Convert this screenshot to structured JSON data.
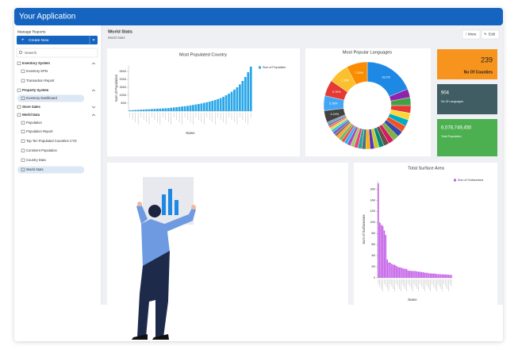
{
  "header": {
    "title": "Your Application"
  },
  "sidebar": {
    "title": "Manage Reports",
    "create_button": "Create New",
    "search_placeholder": "Search",
    "items": [
      {
        "label": "Inventory System",
        "child": false,
        "selected": false
      },
      {
        "label": "Inventory KPIs",
        "child": true,
        "selected": false
      },
      {
        "label": "Transaction Report",
        "child": true,
        "selected": false
      },
      {
        "label": "Property System",
        "child": false,
        "selected": false
      },
      {
        "label": "Inventory Dashboard",
        "child": true,
        "selected": true
      },
      {
        "label": "Store Sales",
        "child": false,
        "selected": false
      },
      {
        "label": "World Data",
        "child": false,
        "selected": false
      },
      {
        "label": "Population",
        "child": true,
        "selected": false
      },
      {
        "label": "Population Report",
        "child": true,
        "selected": false
      },
      {
        "label": "Top Ten Populated Countries CYD",
        "child": true,
        "selected": false
      },
      {
        "label": "Continent Population",
        "child": true,
        "selected": false
      },
      {
        "label": "Country Data",
        "child": true,
        "selected": false
      },
      {
        "label": "World Stats",
        "child": true,
        "selected": true
      }
    ]
  },
  "page": {
    "title": "World Stats",
    "breadcrumb": "World Stats",
    "more_button": "More",
    "edit_button": "Edit"
  },
  "kpis": [
    {
      "value": "239",
      "label": "No Of Counties",
      "color": "#f7941d"
    },
    {
      "value": "904",
      "label": "No Of Languages",
      "color": "#3f5d62"
    },
    {
      "value": "6,078,749,450",
      "label": "Total Population",
      "color": "#4caf50"
    }
  ],
  "charts": [
    {
      "type": "bar",
      "title": "Most Populated Country",
      "x_label": "Name",
      "y_label": "Sum of Population",
      "series": [
        {
          "name": "Sum of Population",
          "color": "#2aa7e8",
          "values": [
            5000000,
            6000000,
            7000000,
            8000000,
            9000000,
            10000000,
            11000000,
            12000000,
            13000000,
            14000000,
            15000000,
            16000000,
            17000000,
            18000000,
            19000000,
            21000000,
            23000000,
            25000000,
            27000000,
            29000000,
            31000000,
            33000000,
            36000000,
            39000000,
            42000000,
            45000000,
            48000000,
            52000000,
            56000000,
            60000000,
            65000000,
            70000000,
            76000000,
            82000000,
            90000000,
            100000000,
            110000000,
            122000000,
            135000000,
            150000000,
            168000000,
            190000000,
            215000000,
            245000000,
            280000000
          ]
        }
      ],
      "ylim": [
        0,
        290000000
      ],
      "yticks": [
        {
          "value": 50000000,
          "label": "50M"
        },
        {
          "value": 100000000,
          "label": "100M"
        },
        {
          "value": 150000000,
          "label": "150M"
        },
        {
          "value": 200000000,
          "label": "200M"
        },
        {
          "value": 250000000,
          "label": "250M"
        }
      ]
    },
    {
      "type": "pie",
      "title": "Most Popular Languages",
      "donut": true,
      "values": [
        18.2,
        3.1,
        2.9,
        2.7,
        2.5,
        2.4,
        2.3,
        2.2,
        2.1,
        2.0,
        1.9,
        1.8,
        1.7,
        1.6,
        1.5,
        1.5,
        1.4,
        1.4,
        1.3,
        1.3,
        1.2,
        1.2,
        1.1,
        1.1,
        1.0,
        1.0,
        0.9,
        0.9,
        0.8,
        0.8,
        0.7,
        4.24,
        5.36,
        5.76,
        7.35,
        7.55
      ],
      "value_labels": [
        "18.2%",
        null,
        null,
        null,
        null,
        null,
        null,
        null,
        null,
        null,
        null,
        null,
        null,
        null,
        null,
        null,
        null,
        null,
        null,
        null,
        null,
        null,
        null,
        null,
        null,
        null,
        null,
        null,
        null,
        null,
        null,
        "4.24%",
        "5.36%",
        "5.76%",
        "7.35%",
        "7.55%"
      ],
      "colors": [
        "#1e88e5",
        "#8e24aa",
        "#43a047",
        "#e53935",
        "#fdd835",
        "#00acc1",
        "#f4511e",
        "#3949ab",
        "#7cb342",
        "#d81b60",
        "#6d4c41",
        "#00897b",
        "#c0ca33",
        "#5e35b1",
        "#ffb300",
        "#546e7a",
        "#26a69a",
        "#ec407a",
        "#9ccc65",
        "#ab47bc",
        "#29b6f6",
        "#ef5350",
        "#66bb6a",
        "#ffa726",
        "#8d6e63",
        "#7e57c2",
        "#26c6da",
        "#d4e157",
        "#ff7043",
        "#5c6bc0",
        "#78909c",
        "#424242",
        "#42a5f5",
        "#e53935",
        "#fbc02d",
        "#fb8c00"
      ]
    },
    {
      "type": "bar",
      "title": "Total Surface Area",
      "x_label": "Name",
      "y_label": "Sum of Surfacearea",
      "series": [
        {
          "name": "Sum of Surfacearea",
          "color": "#c45ee8",
          "values": [
            17075400,
            9970610,
            9572900,
            9363520,
            8547403,
            7741220,
            3287263,
            2780400,
            2724900,
            2505813,
            2381741,
            2344858,
            2149690,
            1972550,
            1904569,
            1862000,
            1775500,
            1648195,
            1625000,
            1566500,
            1284000,
            1285216,
            1246700,
            1240192,
            1221037,
            1219080,
            1138914,
            1104300,
            1098581,
            1030700,
            1001449,
            923768,
            912050,
            881910,
            796095,
            783562,
            774815,
            752618,
            752614,
            676578,
            652090,
            647500,
            637657,
            622984,
            603700,
            587041,
            581730,
            551500,
            527968,
            513115
          ]
        }
      ],
      "ylim": [
        0,
        17500000
      ],
      "yticks": [
        0,
        {
          "value": 2000000,
          "label": "2M"
        },
        {
          "value": 4000000,
          "label": "4M"
        },
        {
          "value": 6000000,
          "label": "6M"
        },
        {
          "value": 8000000,
          "label": "8M"
        },
        {
          "value": 10000000,
          "label": "10M"
        },
        {
          "value": 12000000,
          "label": "12M"
        },
        {
          "value": 14000000,
          "label": "14M"
        },
        {
          "value": 16000000,
          "label": "16M"
        }
      ]
    }
  ]
}
